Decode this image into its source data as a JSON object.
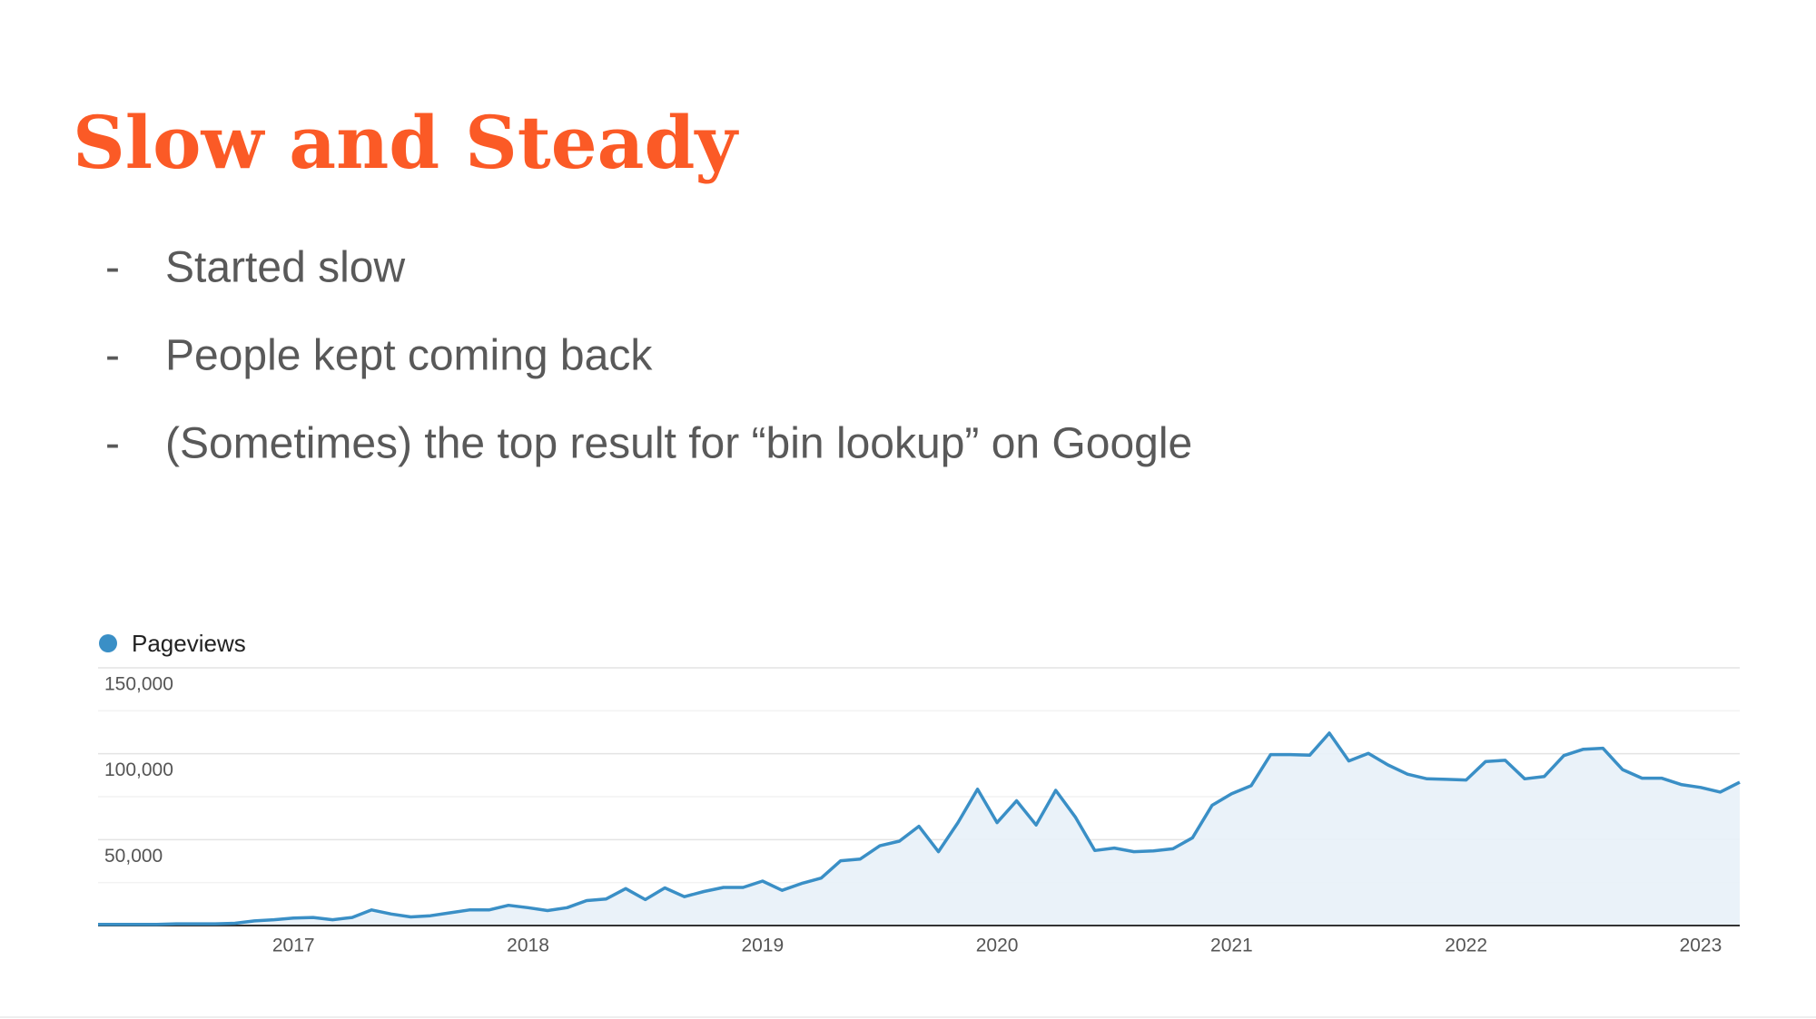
{
  "slide": {
    "title": "Slow and Steady",
    "bullets": [
      {
        "marker": "-",
        "text": "Started slow"
      },
      {
        "marker": "-",
        "text": "People kept coming back"
      },
      {
        "marker": "-",
        "text": "(Sometimes) the top result for “bin lookup” on Google"
      }
    ]
  },
  "chart_data": {
    "type": "line",
    "categories": [
      null,
      null,
      null,
      null,
      null,
      null,
      null,
      null,
      null,
      null,
      "2017",
      null,
      null,
      null,
      null,
      null,
      null,
      null,
      null,
      null,
      null,
      null,
      "2018",
      null,
      null,
      null,
      null,
      null,
      null,
      null,
      null,
      null,
      null,
      null,
      "2019",
      null,
      null,
      null,
      null,
      null,
      null,
      null,
      null,
      null,
      null,
      null,
      "2020",
      null,
      null,
      null,
      null,
      null,
      null,
      null,
      null,
      null,
      null,
      null,
      "2021",
      null,
      null,
      null,
      null,
      null,
      null,
      null,
      null,
      null,
      null,
      null,
      "2022",
      null,
      null,
      null,
      null,
      null,
      null,
      null,
      null,
      null,
      null,
      null,
      "2023",
      null,
      null
    ],
    "series": [
      {
        "name": "Pageviews",
        "color": "#3a8fc6",
        "values": [
          700,
          700,
          700,
          700,
          1000,
          1000,
          1000,
          1300,
          2700,
          3400,
          4400,
          4700,
          3400,
          4700,
          9100,
          6700,
          5000,
          5700,
          7400,
          9100,
          9100,
          11800,
          10400,
          8700,
          10400,
          14500,
          15500,
          21500,
          15100,
          21900,
          16800,
          19800,
          22200,
          22200,
          25900,
          20500,
          24500,
          27600,
          37700,
          38700,
          46400,
          49100,
          57800,
          43000,
          59900,
          79400,
          59900,
          72600,
          58500,
          78700,
          63200,
          43700,
          45100,
          43000,
          43400,
          44700,
          51100,
          70000,
          76700,
          81400,
          99500,
          99500,
          99200,
          112000,
          95800,
          100200,
          93500,
          88100,
          85400,
          85100,
          84700,
          95500,
          96200,
          85400,
          86800,
          98900,
          102600,
          103200,
          90800,
          85800,
          85800,
          82100,
          80400,
          77700,
          83400
        ]
      }
    ],
    "ylim": [
      0,
      150000
    ],
    "yticks": [
      {
        "value": 50000,
        "label": "50,000"
      },
      {
        "value": 100000,
        "label": "100,000"
      },
      {
        "value": 150000,
        "label": "150,000"
      }
    ],
    "minor_yticks": [
      25000,
      75000,
      125000
    ],
    "grid": true,
    "legend": "top-left"
  }
}
